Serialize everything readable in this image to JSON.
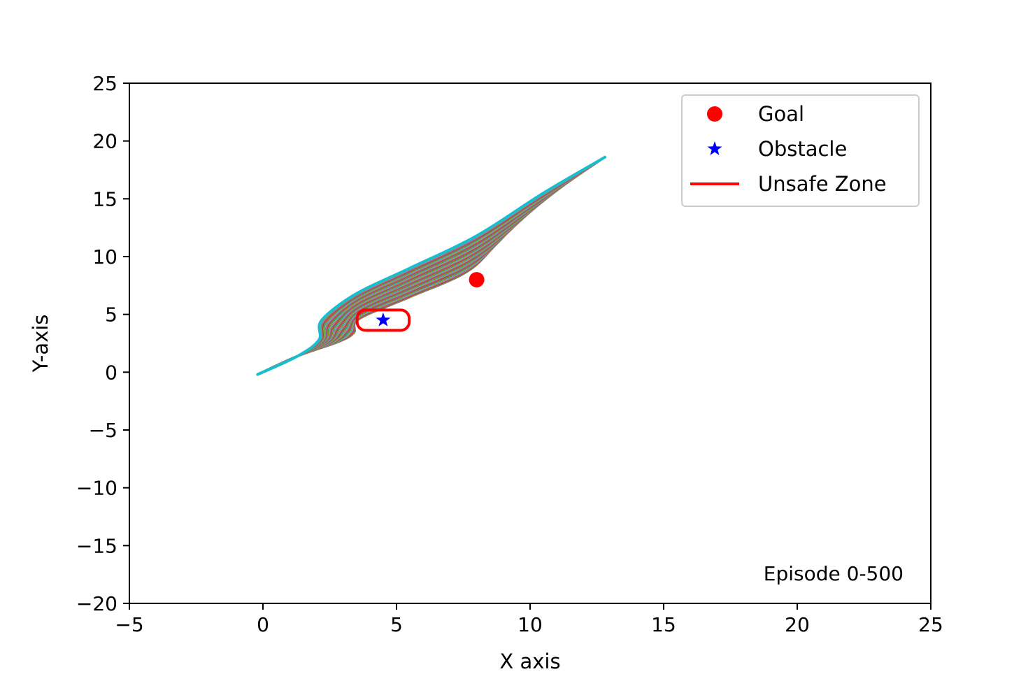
{
  "chart_data": {
    "type": "line",
    "xlabel": "X axis",
    "ylabel": "Y-axis",
    "xlim": [
      -5,
      25
    ],
    "ylim": [
      -20,
      25
    ],
    "xticks": [
      -5,
      0,
      5,
      10,
      15,
      20,
      25
    ],
    "yticks": [
      -20,
      -15,
      -10,
      -5,
      0,
      5,
      10,
      15,
      20,
      25
    ],
    "xtick_labels": [
      "−5",
      "0",
      "5",
      "10",
      "15",
      "20",
      "25"
    ],
    "ytick_labels": [
      "−20",
      "−15",
      "−10",
      "−5",
      "0",
      "5",
      "10",
      "15",
      "20",
      "25"
    ],
    "grid": false,
    "legend_position": "top-right",
    "legend": [
      {
        "label": "Goal",
        "marker": "circle",
        "color": "#ff0000"
      },
      {
        "label": "Obstacle",
        "marker": "star",
        "color": "#0000ff"
      },
      {
        "label": "Unsafe Zone",
        "marker": "line",
        "color": "#ff0000"
      }
    ],
    "annotation": "Episode 0-500",
    "goal": {
      "x": 8,
      "y": 8,
      "color": "#ff0000"
    },
    "obstacle": {
      "x": 4.5,
      "y": 4.5,
      "color": "#0000ff"
    },
    "unsafe_zone": {
      "x_min": 3.5,
      "x_max": 5.5,
      "y_min": 3.5,
      "y_max": 5.5,
      "color": "#ff0000"
    },
    "trajectory_colors": [
      "#1f77b4",
      "#ff7f0e",
      "#2ca02c",
      "#d62728",
      "#9467bd",
      "#8c564b",
      "#e377c2",
      "#7f7f7f",
      "#bcbd22",
      "#17becf"
    ],
    "trajectory_range": {
      "start": [
        -0.2,
        -0.2
      ],
      "branch": [
        1.3,
        1.4
      ],
      "inner_path": [
        [
          2.8,
          2.6
        ],
        [
          3.4,
          3.4
        ],
        [
          3.6,
          4.6
        ],
        [
          5.5,
          6.5
        ],
        [
          7.5,
          8.5
        ],
        [
          8.5,
          10.5
        ],
        [
          9.5,
          13.5
        ]
      ],
      "outer_path": [
        [
          2.1,
          2.8
        ],
        [
          2.2,
          4.5
        ],
        [
          3.5,
          6.8
        ],
        [
          5.5,
          9.0
        ],
        [
          8.0,
          11.8
        ],
        [
          10.5,
          15.5
        ],
        [
          12.8,
          18.6
        ]
      ]
    }
  }
}
